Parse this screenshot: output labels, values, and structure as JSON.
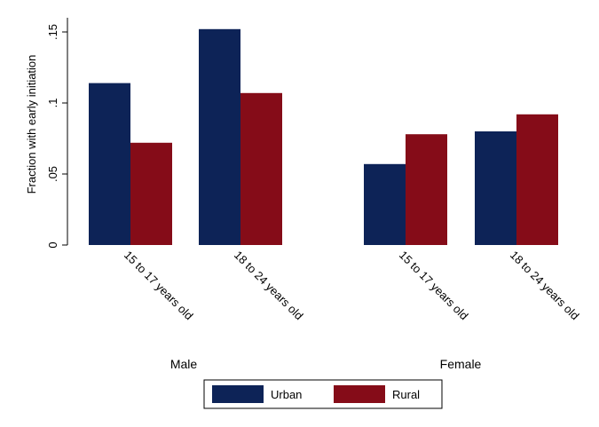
{
  "chart_data": {
    "type": "bar",
    "ylabel": "Fraction with early initiation",
    "ylim": [
      0,
      0.15
    ],
    "yticks": [
      {
        "value": 0,
        "label": "0"
      },
      {
        "value": 0.05,
        "label": ".05"
      },
      {
        "value": 0.1,
        "label": ".1"
      },
      {
        "value": 0.15,
        "label": ".15"
      }
    ],
    "groups": [
      {
        "name": "Male",
        "categories": [
          "15 to 17 years old",
          "18 to 24 years old"
        ]
      },
      {
        "name": "Female",
        "categories": [
          "15 to 17 years old",
          "18 to 24 years old"
        ]
      }
    ],
    "series": [
      {
        "name": "Urban",
        "color": "#0d2357",
        "values": [
          0.114,
          0.152,
          0.057,
          0.08
        ]
      },
      {
        "name": "Rural",
        "color": "#850c18",
        "values": [
          0.072,
          0.107,
          0.078,
          0.092
        ]
      }
    ],
    "grid": false,
    "legend": "bottom"
  }
}
